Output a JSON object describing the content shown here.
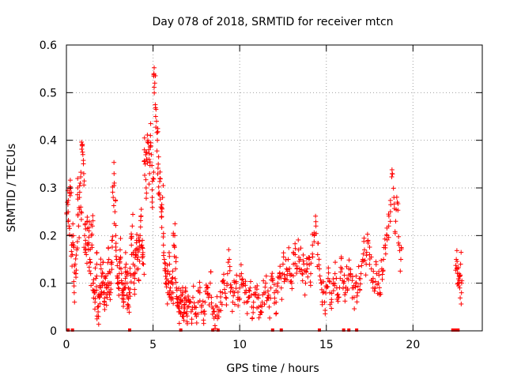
{
  "chart_data": {
    "type": "scatter",
    "title": "Day 078 of 2018, SRMTID for receiver mtcn",
    "xlabel": "GPS time / hours",
    "ylabel": "SRMTID / TECUs",
    "xlim": [
      0,
      24
    ],
    "ylim": [
      0,
      0.6
    ],
    "grid": true,
    "marker": "+",
    "color": "#ff0000",
    "x_ticks": [
      0,
      5,
      10,
      15,
      20
    ],
    "y_ticks": [
      0,
      0.1,
      0.2,
      0.3,
      0.4,
      0.5,
      0.6
    ],
    "series": [
      {
        "name": "SRMTID",
        "points": [
          [
            0.05,
            0.27
          ],
          [
            0.1,
            0.25
          ],
          [
            0.15,
            0.22
          ],
          [
            0.2,
            0.29
          ],
          [
            0.25,
            0.3
          ],
          [
            0.3,
            0.18
          ],
          [
            0.35,
            0.16
          ],
          [
            0.4,
            0.2
          ],
          [
            0.45,
            0.08
          ],
          [
            0.5,
            0.14
          ],
          [
            0.55,
            0.12
          ],
          [
            0.6,
            0.17
          ],
          [
            0.65,
            0.3
          ],
          [
            0.7,
            0.22
          ],
          [
            0.75,
            0.28
          ],
          [
            0.8,
            0.31
          ],
          [
            0.85,
            0.25
          ],
          [
            0.9,
            0.39
          ],
          [
            0.95,
            0.37
          ],
          [
            1.0,
            0.33
          ],
          [
            1.05,
            0.2
          ],
          [
            1.1,
            0.19
          ],
          [
            1.15,
            0.16
          ],
          [
            1.2,
            0.23
          ],
          [
            1.25,
            0.18
          ],
          [
            1.3,
            0.21
          ],
          [
            1.35,
            0.15
          ],
          [
            1.4,
            0.12
          ],
          [
            1.45,
            0.2
          ],
          [
            1.5,
            0.22
          ],
          [
            1.55,
            0.1
          ],
          [
            1.6,
            0.08
          ],
          [
            1.65,
            0.06
          ],
          [
            1.7,
            0.11
          ],
          [
            1.75,
            0.14
          ],
          [
            1.8,
            0.05
          ],
          [
            1.85,
            0.03
          ],
          [
            1.9,
            0.07
          ],
          [
            1.95,
            0.09
          ],
          [
            2.0,
            0.13
          ],
          [
            2.05,
            0.1
          ],
          [
            2.1,
            0.12
          ],
          [
            2.15,
            0.08
          ],
          [
            2.2,
            0.06
          ],
          [
            2.25,
            0.11
          ],
          [
            2.3,
            0.09
          ],
          [
            2.35,
            0.07
          ],
          [
            2.4,
            0.12
          ],
          [
            2.45,
            0.15
          ],
          [
            2.5,
            0.1
          ],
          [
            2.55,
            0.08
          ],
          [
            2.6,
            0.14
          ],
          [
            2.65,
            0.19
          ],
          [
            2.7,
            0.28
          ],
          [
            2.75,
            0.33
          ],
          [
            2.8,
            0.25
          ],
          [
            2.85,
            0.2
          ],
          [
            2.9,
            0.15
          ],
          [
            2.95,
            0.11
          ],
          [
            3.0,
            0.09
          ],
          [
            3.05,
            0.12
          ],
          [
            3.1,
            0.17
          ],
          [
            3.15,
            0.13
          ],
          [
            3.2,
            0.1
          ],
          [
            3.25,
            0.08
          ],
          [
            3.3,
            0.06
          ],
          [
            3.35,
            0.09
          ],
          [
            3.4,
            0.11
          ],
          [
            3.45,
            0.14
          ],
          [
            3.5,
            0.1
          ],
          [
            3.55,
            0.07
          ],
          [
            3.6,
            0.05
          ],
          [
            3.65,
            0.08
          ],
          [
            3.7,
            0.12
          ],
          [
            3.75,
            0.18
          ],
          [
            3.8,
            0.22
          ],
          [
            3.85,
            0.14
          ],
          [
            3.9,
            0.1
          ],
          [
            3.95,
            0.12
          ],
          [
            4.0,
            0.16
          ],
          [
            4.05,
            0.19
          ],
          [
            4.1,
            0.15
          ],
          [
            4.15,
            0.13
          ],
          [
            4.2,
            0.17
          ],
          [
            4.25,
            0.2
          ],
          [
            4.3,
            0.24
          ],
          [
            4.35,
            0.18
          ],
          [
            4.4,
            0.16
          ],
          [
            4.45,
            0.14
          ],
          [
            4.5,
            0.38
          ],
          [
            4.55,
            0.35
          ],
          [
            4.6,
            0.3
          ],
          [
            4.65,
            0.36
          ],
          [
            4.7,
            0.4
          ],
          [
            4.75,
            0.38
          ],
          [
            4.8,
            0.33
          ],
          [
            4.85,
            0.41
          ],
          [
            4.9,
            0.37
          ],
          [
            4.95,
            0.28
          ],
          [
            5.0,
            0.32
          ],
          [
            5.05,
            0.54
          ],
          [
            5.1,
            0.52
          ],
          [
            5.15,
            0.45
          ],
          [
            5.2,
            0.44
          ],
          [
            5.25,
            0.4
          ],
          [
            5.3,
            0.35
          ],
          [
            5.35,
            0.29
          ],
          [
            5.4,
            0.32
          ],
          [
            5.45,
            0.26
          ],
          [
            5.5,
            0.24
          ],
          [
            5.55,
            0.28
          ],
          [
            5.6,
            0.18
          ],
          [
            5.65,
            0.15
          ],
          [
            5.7,
            0.13
          ],
          [
            5.75,
            0.1
          ],
          [
            5.8,
            0.12
          ],
          [
            5.85,
            0.08
          ],
          [
            5.9,
            0.1
          ],
          [
            5.95,
            0.14
          ],
          [
            6.0,
            0.09
          ],
          [
            6.05,
            0.07
          ],
          [
            6.1,
            0.11
          ],
          [
            6.15,
            0.08
          ],
          [
            6.2,
            0.18
          ],
          [
            6.25,
            0.2
          ],
          [
            6.3,
            0.13
          ],
          [
            6.35,
            0.09
          ],
          [
            6.4,
            0.06
          ],
          [
            6.45,
            0.05
          ],
          [
            6.5,
            0.07
          ],
          [
            6.55,
            0.04
          ],
          [
            6.6,
            0.06
          ],
          [
            6.65,
            0.05
          ],
          [
            6.7,
            0.08
          ],
          [
            6.75,
            0.03
          ],
          [
            6.8,
            0.05
          ],
          [
            6.85,
            0.07
          ],
          [
            6.9,
            0.06
          ],
          [
            6.95,
            0.04
          ],
          [
            7.0,
            0.05
          ],
          [
            7.1,
            0.06
          ],
          [
            7.2,
            0.04
          ],
          [
            7.3,
            0.07
          ],
          [
            7.4,
            0.05
          ],
          [
            7.5,
            0.03
          ],
          [
            7.6,
            0.06
          ],
          [
            7.7,
            0.08
          ],
          [
            7.8,
            0.05
          ],
          [
            7.9,
            0.04
          ],
          [
            8.0,
            0.06
          ],
          [
            8.1,
            0.09
          ],
          [
            8.2,
            0.07
          ],
          [
            8.3,
            0.1
          ],
          [
            8.4,
            0.05
          ],
          [
            8.5,
            0.04
          ],
          [
            8.6,
            0.03
          ],
          [
            8.7,
            0.05
          ],
          [
            8.8,
            0.04
          ],
          [
            8.9,
            0.06
          ],
          [
            9.0,
            0.08
          ],
          [
            9.1,
            0.1
          ],
          [
            9.2,
            0.07
          ],
          [
            9.3,
            0.12
          ],
          [
            9.4,
            0.15
          ],
          [
            9.5,
            0.09
          ],
          [
            9.6,
            0.06
          ],
          [
            9.7,
            0.08
          ],
          [
            9.8,
            0.1
          ],
          [
            9.9,
            0.07
          ],
          [
            10.0,
            0.09
          ],
          [
            10.1,
            0.12
          ],
          [
            10.2,
            0.1
          ],
          [
            10.3,
            0.08
          ],
          [
            10.4,
            0.06
          ],
          [
            10.5,
            0.07
          ],
          [
            10.6,
            0.09
          ],
          [
            10.7,
            0.05
          ],
          [
            10.8,
            0.06
          ],
          [
            10.9,
            0.08
          ],
          [
            11.0,
            0.07
          ],
          [
            11.1,
            0.05
          ],
          [
            11.2,
            0.04
          ],
          [
            11.3,
            0.06
          ],
          [
            11.4,
            0.08
          ],
          [
            11.5,
            0.1
          ],
          [
            11.6,
            0.07
          ],
          [
            11.7,
            0.05
          ],
          [
            11.8,
            0.09
          ],
          [
            11.9,
            0.11
          ],
          [
            12.0,
            0.08
          ],
          [
            12.1,
            0.06
          ],
          [
            12.2,
            0.1
          ],
          [
            12.3,
            0.12
          ],
          [
            12.4,
            0.09
          ],
          [
            12.5,
            0.14
          ],
          [
            12.6,
            0.11
          ],
          [
            12.7,
            0.13
          ],
          [
            12.8,
            0.15
          ],
          [
            12.9,
            0.12
          ],
          [
            13.0,
            0.1
          ],
          [
            13.1,
            0.14
          ],
          [
            13.2,
            0.16
          ],
          [
            13.3,
            0.13
          ],
          [
            13.4,
            0.17
          ],
          [
            13.5,
            0.15
          ],
          [
            13.6,
            0.12
          ],
          [
            13.7,
            0.14
          ],
          [
            13.8,
            0.1
          ],
          [
            13.9,
            0.13
          ],
          [
            14.0,
            0.15
          ],
          [
            14.1,
            0.12
          ],
          [
            14.2,
            0.18
          ],
          [
            14.3,
            0.2
          ],
          [
            14.4,
            0.22
          ],
          [
            14.5,
            0.16
          ],
          [
            14.6,
            0.13
          ],
          [
            14.7,
            0.1
          ],
          [
            14.8,
            0.08
          ],
          [
            14.9,
            0.06
          ],
          [
            15.0,
            0.09
          ],
          [
            15.1,
            0.11
          ],
          [
            15.2,
            0.08
          ],
          [
            15.3,
            0.06
          ],
          [
            15.4,
            0.1
          ],
          [
            15.5,
            0.12
          ],
          [
            15.6,
            0.09
          ],
          [
            15.7,
            0.07
          ],
          [
            15.8,
            0.11
          ],
          [
            15.9,
            0.13
          ],
          [
            16.0,
            0.1
          ],
          [
            16.1,
            0.08
          ],
          [
            16.2,
            0.11
          ],
          [
            16.3,
            0.13
          ],
          [
            16.4,
            0.12
          ],
          [
            16.5,
            0.09
          ],
          [
            16.6,
            0.07
          ],
          [
            16.7,
            0.1
          ],
          [
            16.8,
            0.08
          ],
          [
            16.9,
            0.11
          ],
          [
            17.0,
            0.12
          ],
          [
            17.1,
            0.15
          ],
          [
            17.2,
            0.17
          ],
          [
            17.3,
            0.14
          ],
          [
            17.4,
            0.19
          ],
          [
            17.5,
            0.16
          ],
          [
            17.6,
            0.13
          ],
          [
            17.7,
            0.11
          ],
          [
            17.8,
            0.09
          ],
          [
            17.9,
            0.12
          ],
          [
            18.0,
            0.1
          ],
          [
            18.1,
            0.08
          ],
          [
            18.2,
            0.13
          ],
          [
            18.3,
            0.15
          ],
          [
            18.4,
            0.18
          ],
          [
            18.5,
            0.2
          ],
          [
            18.6,
            0.22
          ],
          [
            18.7,
            0.25
          ],
          [
            18.8,
            0.33
          ],
          [
            18.9,
            0.28
          ],
          [
            19.0,
            0.23
          ],
          [
            19.1,
            0.27
          ],
          [
            19.2,
            0.18
          ],
          [
            19.3,
            0.15
          ],
          [
            22.5,
            0.15
          ],
          [
            22.55,
            0.13
          ],
          [
            22.6,
            0.1
          ],
          [
            22.65,
            0.12
          ],
          [
            22.7,
            0.09
          ],
          [
            22.75,
            0.14
          ],
          [
            22.8,
            0.08
          ]
        ]
      }
    ],
    "zero_value_hours": [
      0.1,
      0.35,
      3.65,
      6.6,
      8.45,
      8.75,
      11.9,
      12.4,
      14.6,
      16.0,
      16.3,
      16.75,
      22.3,
      22.45,
      22.6
    ]
  }
}
